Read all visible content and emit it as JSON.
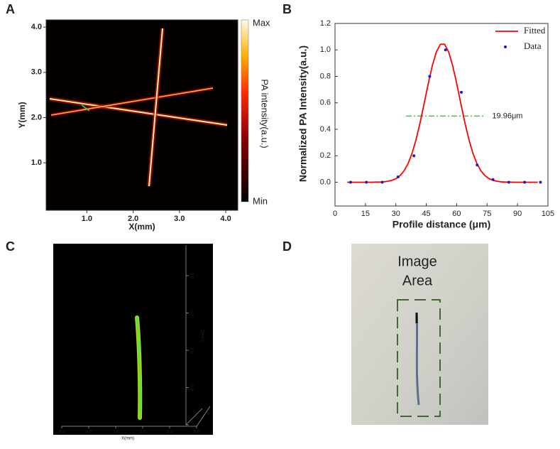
{
  "chart_data": [
    {
      "panel": "A",
      "type": "heatmap",
      "xlabel": "X(mm)",
      "ylabel": "Y(mm)",
      "xlim": [
        0.12,
        4.26
      ],
      "ylim": [
        -0.05,
        4.16
      ],
      "xticks": [
        {
          "value": 1,
          "label": "1.0"
        },
        {
          "value": 2,
          "label": "2.0"
        },
        {
          "value": 3,
          "label": "3.0"
        },
        {
          "value": 4,
          "label": "4.0"
        }
      ],
      "yticks": [
        {
          "value": 1,
          "label": "1.0"
        },
        {
          "value": 2,
          "label": "2.0"
        },
        {
          "value": 3,
          "label": "3.0"
        },
        {
          "value": 4,
          "label": "4.0"
        }
      ],
      "colorbar": {
        "label": "PA intensity(a.u.)",
        "max_label": "Max",
        "min_label": "Min"
      }
    },
    {
      "panel": "B",
      "type": "line",
      "xlabel": "Profile distance (μm)",
      "ylabel": "Normalized PA Intensity(a.u.)",
      "xlim": [
        0,
        105
      ],
      "ylim": [
        -0.18,
        1.2
      ],
      "xticks": [
        0,
        15,
        30,
        45,
        60,
        75,
        90,
        105
      ],
      "yticks": [
        {
          "value": 0,
          "label": "0.0"
        },
        {
          "value": 0.2,
          "label": "0.2"
        },
        {
          "value": 0.4,
          "label": "0.4"
        },
        {
          "value": 0.6,
          "label": "0.6"
        },
        {
          "value": 0.8,
          "label": "0.8"
        },
        {
          "value": 1,
          "label": "1.0"
        },
        {
          "value": 1.2,
          "label": "1.2"
        }
      ],
      "series": [
        {
          "name": "Fitted",
          "color": "#ff0000",
          "style": "line",
          "x": [
            6,
            8,
            10,
            12,
            14,
            16,
            18,
            20,
            22,
            24,
            26,
            28,
            30,
            32,
            34,
            36,
            38,
            40,
            42,
            44,
            46,
            48,
            50,
            52,
            54,
            56,
            58,
            60,
            62,
            64,
            66,
            68,
            70,
            72,
            74,
            76,
            78,
            80,
            82,
            84,
            86,
            88,
            90,
            92,
            94,
            96,
            98,
            100
          ],
          "values": [
            0,
            0,
            0,
            0,
            0,
            0,
            0,
            0.001,
            0.001,
            0.003,
            0.007,
            0.014,
            0.026,
            0.049,
            0.085,
            0.14,
            0.219,
            0.324,
            0.453,
            0.598,
            0.747,
            0.882,
            0.986,
            1.043,
            1.043,
            0.986,
            0.882,
            0.747,
            0.598,
            0.453,
            0.324,
            0.219,
            0.14,
            0.085,
            0.049,
            0.026,
            0.014,
            0.007,
            0.003,
            0.001,
            0.001,
            0,
            0,
            0,
            0,
            0,
            0,
            0
          ]
        },
        {
          "name": "Data",
          "color": "#1a1acc",
          "style": "scatter",
          "x": [
            7.7,
            15.5,
            23.3,
            31.1,
            38.9,
            46.7,
            54.5,
            62.3,
            70.1,
            77.9,
            85.7,
            93.5,
            101.3
          ],
          "values": [
            0,
            0,
            0,
            0.04,
            0.2,
            0.8,
            1.0,
            0.68,
            0.13,
            0.02,
            0,
            0,
            0
          ]
        }
      ],
      "annotation": {
        "text": "19.96μm",
        "y": 0.5,
        "x": [
          35,
          74
        ]
      }
    },
    {
      "panel": "C",
      "type": "render3d",
      "xlabel": "X(mm)",
      "zlabel": "Z(mm)",
      "xlim": [
        0,
        5
      ],
      "zlim": [
        0,
        2.41
      ],
      "xticks": [
        {
          "value": 0,
          "label": "0.0"
        },
        {
          "value": 1,
          "label": "1.0"
        },
        {
          "value": 2,
          "label": "2.0"
        },
        {
          "value": 3,
          "label": "3.0"
        },
        {
          "value": 4,
          "label": "4.0"
        },
        {
          "value": 5,
          "label": "5.0"
        }
      ],
      "zticks": [
        {
          "value": 0,
          "label": "0.0"
        },
        {
          "value": 0.5,
          "label": "0.5"
        },
        {
          "value": 1,
          "label": "1.0"
        },
        {
          "value": 1.5,
          "label": "1.5"
        },
        {
          "value": 2,
          "label": "2.0"
        }
      ]
    },
    {
      "panel": "D",
      "type": "photo",
      "annotation_lines": [
        "Image",
        "Area"
      ]
    }
  ]
}
